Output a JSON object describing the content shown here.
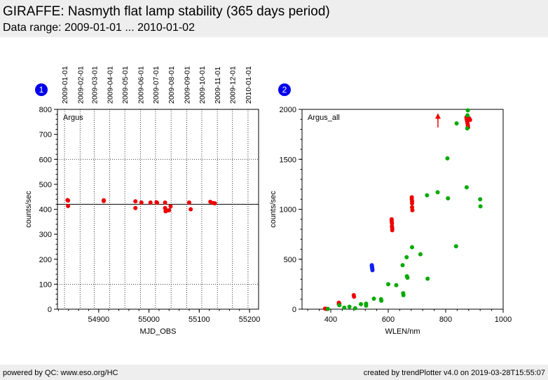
{
  "header": {
    "title": "GIRAFFE: Nasmyth flat lamp stability (365 days period)",
    "subtitle": "Data range: 2009-01-01 ... 2010-01-02"
  },
  "footer": {
    "left": "powered by QC: www.eso.org/HC",
    "right": "created by trendPlotter v4.0 on 2019-03-28T15:55:07"
  },
  "colors": {
    "red": "#ee0000",
    "blue": "#1020ee",
    "green": "#00aa00",
    "badge": "#0000ee"
  },
  "chart_data": [
    {
      "type": "scatter",
      "badge": "1",
      "label": "Argus",
      "xlabel": "MJD_OBS",
      "ylabel": "counts/sec",
      "xlim": [
        54818,
        55218
      ],
      "ylim": [
        0,
        800
      ],
      "xticks": [
        54900,
        55000,
        55100,
        55200
      ],
      "yticks": [
        0,
        100,
        200,
        300,
        400,
        500,
        600,
        700,
        800
      ],
      "reference_line": 420,
      "hlines_dotted": [
        100,
        600
      ],
      "date_ticks": [
        {
          "label": "2009-01-01",
          "x": 54832
        },
        {
          "label": "2009-02-01",
          "x": 54863
        },
        {
          "label": "2009-03-01",
          "x": 54891
        },
        {
          "label": "2009-04-01",
          "x": 54922
        },
        {
          "label": "2009-05-01",
          "x": 54952
        },
        {
          "label": "2009-06-01",
          "x": 54983
        },
        {
          "label": "2009-07-01",
          "x": 55013
        },
        {
          "label": "2009-08-01",
          "x": 55044
        },
        {
          "label": "2009-09-01",
          "x": 55075
        },
        {
          "label": "2009-10-01",
          "x": 55105
        },
        {
          "label": "2009-11-01",
          "x": 55136
        },
        {
          "label": "2009-12-01",
          "x": 55166
        },
        {
          "label": "2010-01-01",
          "x": 55197
        }
      ],
      "points": [
        [
          54838,
          437
        ],
        [
          54839,
          435
        ],
        [
          54839,
          413
        ],
        [
          54910,
          436
        ],
        [
          54910,
          433
        ],
        [
          54973,
          432
        ],
        [
          54973,
          405
        ],
        [
          54985,
          427
        ],
        [
          55003,
          427
        ],
        [
          55015,
          428
        ],
        [
          55016,
          426
        ],
        [
          55032,
          427
        ],
        [
          55032,
          405
        ],
        [
          55033,
          392
        ],
        [
          55036,
          395
        ],
        [
          55040,
          396
        ],
        [
          55043,
          412
        ],
        [
          55080,
          427
        ],
        [
          55083,
          400
        ],
        [
          55122,
          430
        ],
        [
          55128,
          425
        ],
        [
          55131,
          424
        ]
      ]
    },
    {
      "type": "scatter",
      "badge": "2",
      "label": "Argus_all",
      "xlabel": "WLEN/nm",
      "ylabel": "counts/sec",
      "xlim": [
        300,
        1000
      ],
      "ylim": [
        0,
        2000
      ],
      "xticks": [
        400,
        600,
        800,
        1000
      ],
      "yticks": [
        0,
        500,
        1000,
        1500,
        2000
      ],
      "series": [
        {
          "color": "red",
          "points": [
            [
              380,
              5
            ],
            [
              385,
              3
            ],
            [
              428,
              65
            ],
            [
              428,
              50
            ],
            [
              430,
              55
            ],
            [
              480,
              140
            ],
            [
              481,
              125
            ],
            [
              612,
              900
            ],
            [
              612,
              880
            ],
            [
              613,
              860
            ],
            [
              613,
              830
            ],
            [
              614,
              810
            ],
            [
              614,
              790
            ],
            [
              682,
              1120
            ],
            [
              682,
              1100
            ],
            [
              683,
              1080
            ],
            [
              683,
              1060
            ],
            [
              683,
              1020
            ],
            [
              684,
              990
            ],
            [
              872,
              1920
            ],
            [
              873,
              1900
            ],
            [
              875,
              1880
            ],
            [
              876,
              1860
            ],
            [
              877,
              1840
            ],
            [
              878,
              1820
            ],
            [
              880,
              1900
            ],
            [
              882,
              1910
            ],
            [
              885,
              1895
            ]
          ]
        },
        {
          "color": "blue",
          "points": [
            [
              543,
              440
            ],
            [
              543,
              430
            ],
            [
              544,
              420
            ],
            [
              544,
              410
            ],
            [
              545,
              400
            ],
            [
              545,
              390
            ]
          ]
        },
        {
          "color": "green",
          "points": [
            [
              390,
              3
            ],
            [
              430,
              40
            ],
            [
              447,
              15
            ],
            [
              465,
              25
            ],
            [
              485,
              10
            ],
            [
              505,
              50
            ],
            [
              523,
              55
            ],
            [
              523,
              35
            ],
            [
              550,
              105
            ],
            [
              575,
              100
            ],
            [
              576,
              85
            ],
            [
              600,
              250
            ],
            [
              628,
              240
            ],
            [
              650,
              440
            ],
            [
              652,
              160
            ],
            [
              653,
              140
            ],
            [
              664,
              520
            ],
            [
              665,
              330
            ],
            [
              667,
              315
            ],
            [
              683,
              620
            ],
            [
              712,
              550
            ],
            [
              735,
              1140
            ],
            [
              737,
              305
            ],
            [
              772,
              1170
            ],
            [
              806,
              1510
            ],
            [
              808,
              1110
            ],
            [
              836,
              630
            ],
            [
              838,
              1860
            ],
            [
              873,
              1220
            ],
            [
              875,
              1810
            ],
            [
              876,
              1940
            ],
            [
              877,
              1990
            ],
            [
              920,
              1100
            ],
            [
              921,
              1030
            ]
          ]
        }
      ],
      "markers": [
        {
          "type": "up-arrow",
          "color": "red",
          "x": 773,
          "y": 1920,
          "y_from": 1820
        }
      ]
    }
  ]
}
